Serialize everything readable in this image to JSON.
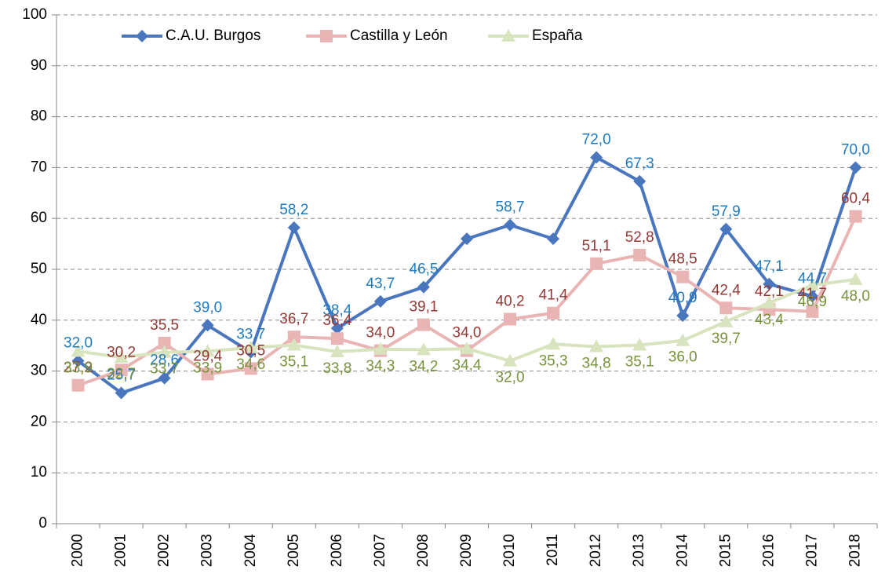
{
  "chart_data": {
    "type": "line",
    "categories": [
      "2000",
      "2001",
      "2002",
      "2003",
      "2004",
      "2005",
      "2006",
      "2007",
      "2008",
      "2009",
      "2010",
      "2011",
      "2012",
      "2013",
      "2014",
      "2015",
      "2016",
      "2017",
      "2018"
    ],
    "ylim": [
      0,
      100
    ],
    "yticks": [
      0,
      10,
      20,
      30,
      40,
      50,
      60,
      70,
      80,
      90,
      100
    ],
    "grid": true,
    "legend": "top-left",
    "series": [
      {
        "name": "C.A.U. Burgos",
        "color": "#4a76be",
        "label_color": "#1f7bc1",
        "marker": "diamond",
        "values": [
          32.0,
          25.7,
          28.6,
          39.0,
          33.7,
          58.2,
          38.4,
          43.7,
          46.5,
          56.0,
          58.7,
          56.0,
          72.0,
          67.3,
          40.9,
          57.9,
          47.1,
          44.7,
          70.0
        ],
        "value_labels": [
          "32,0",
          "25,7",
          "28,6",
          "39,0",
          "33,7",
          "58,2",
          "38,4",
          "43,7",
          "46,5",
          null,
          "58,7",
          null,
          "72,0",
          "67,3",
          "40,9",
          "57,9",
          "47,1",
          "44,7",
          "70,0"
        ]
      },
      {
        "name": "Castilla y León",
        "color": "#e8b4b4",
        "label_color": "#953735",
        "marker": "square",
        "values": [
          27.2,
          30.2,
          35.5,
          29.4,
          30.5,
          36.7,
          36.4,
          34.0,
          39.1,
          34.0,
          40.2,
          41.4,
          51.1,
          52.8,
          48.5,
          42.4,
          42.1,
          41.7,
          60.4
        ],
        "value_labels": [
          "27,2",
          "30,2",
          "35,5",
          "29,4",
          "30,5",
          "36,7",
          "36,4",
          "34,0",
          "39,1",
          "34,0",
          "40,2",
          "41,4",
          "51,1",
          "52,8",
          "48,5",
          "42,4",
          "42,1",
          "41,7",
          "60,4"
        ]
      },
      {
        "name": "España",
        "color": "#d7e4bd",
        "label_color": "#77933c",
        "marker": "triangle",
        "values": [
          33.9,
          32.7,
          33.7,
          33.9,
          34.6,
          35.1,
          33.8,
          34.3,
          34.2,
          34.4,
          32.0,
          35.3,
          34.8,
          35.1,
          36.0,
          39.7,
          43.4,
          46.9,
          48.0
        ],
        "value_labels": [
          "33,9",
          "32,7",
          "33,7",
          "33,9",
          "34,6",
          "35,1",
          "33,8",
          "34,3",
          "34,2",
          "34,4",
          "32,0",
          "35,3",
          "34,8",
          "35,1",
          "36,0",
          "39,7",
          "43,4",
          "46,9",
          "48,0"
        ]
      }
    ]
  }
}
